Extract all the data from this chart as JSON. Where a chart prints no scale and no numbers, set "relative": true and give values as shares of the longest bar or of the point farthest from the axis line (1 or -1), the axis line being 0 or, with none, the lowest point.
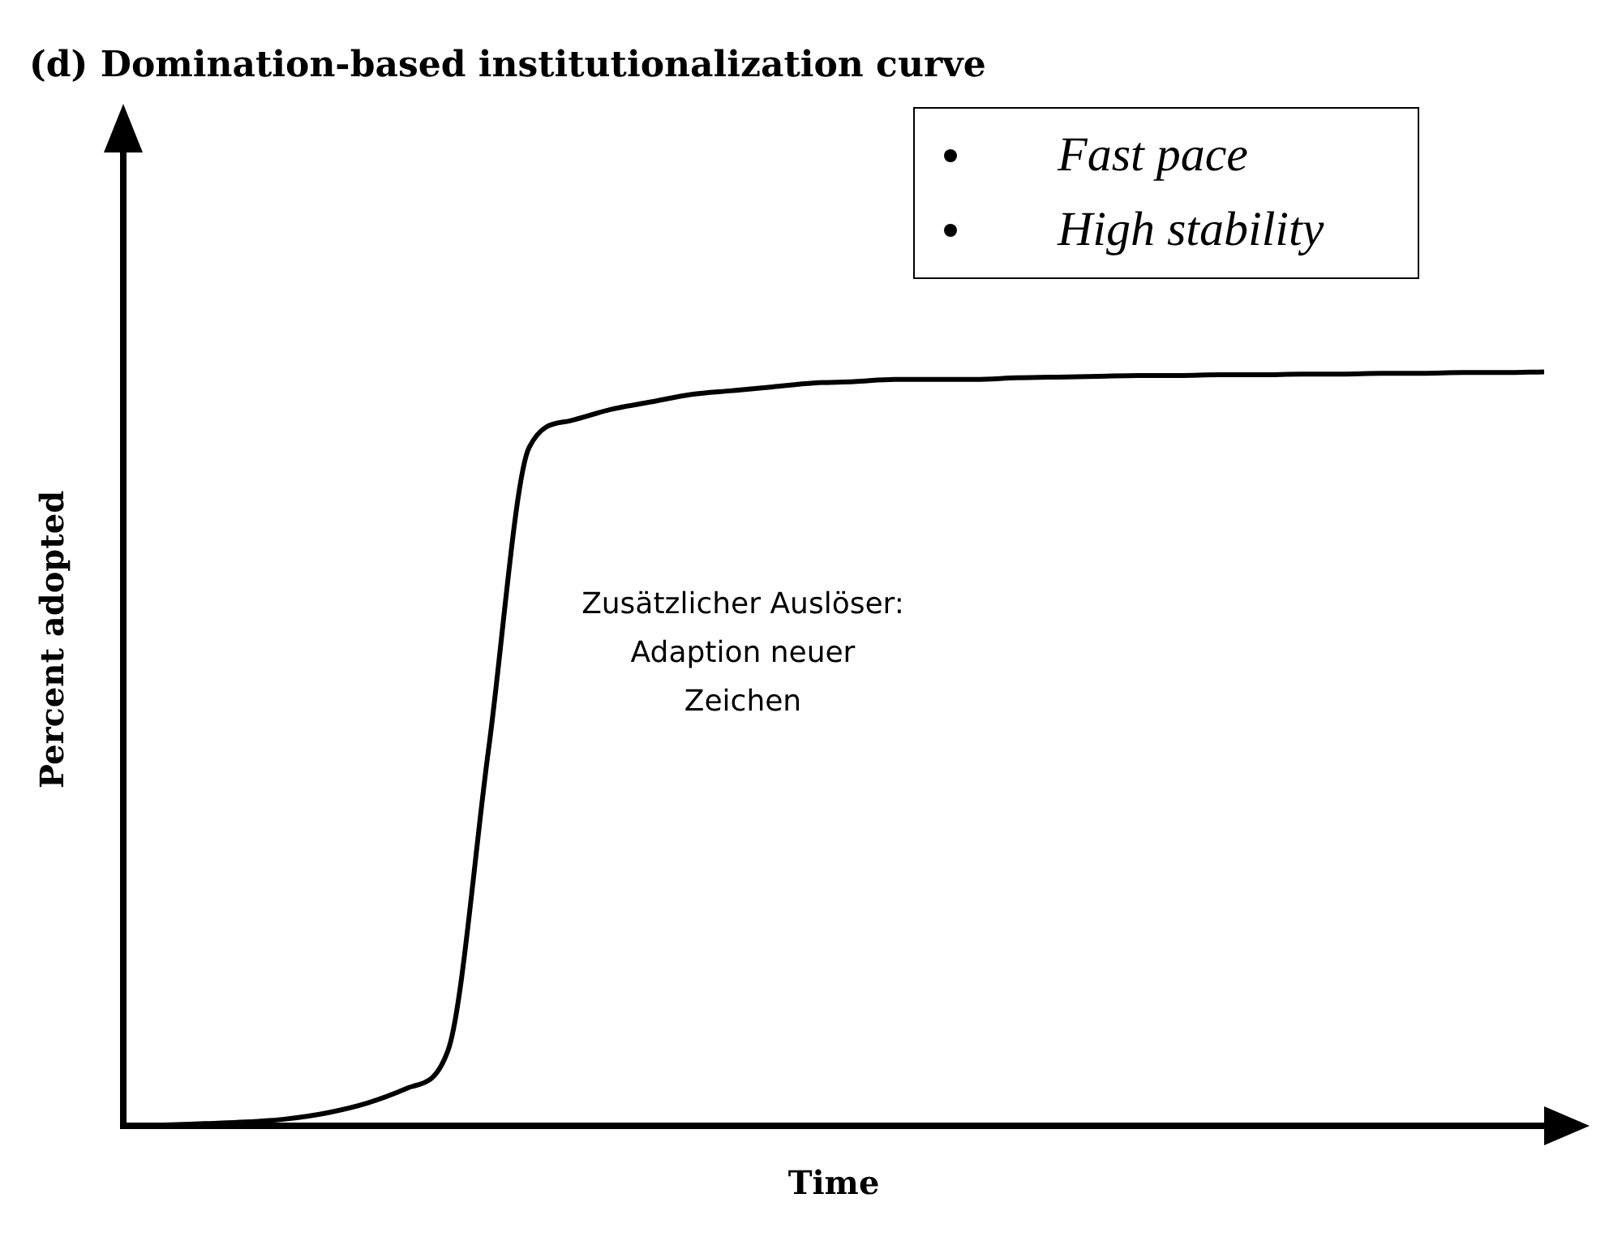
{
  "chart_data": {
    "type": "line",
    "title": "(d) Domination-based institutionalization curve",
    "xlabel": "Time",
    "ylabel": "Percent adopted",
    "relative": true,
    "marker": "none",
    "legend": false,
    "grid": false,
    "categories": [
      null,
      null,
      null,
      null,
      null,
      null,
      null,
      null,
      null,
      null,
      null,
      null,
      null,
      null,
      null,
      null,
      null,
      null,
      null,
      null,
      null,
      null,
      null,
      null,
      null,
      null,
      null,
      null,
      null,
      null,
      null,
      null,
      null,
      null,
      null,
      null
    ],
    "series": [
      {
        "color": "#000000",
        "values": [
          0,
          0.001,
          0.003,
          0.005,
          0.009,
          0.017,
          0.03,
          0.05,
          0.1,
          0.5,
          0.9,
          0.935,
          0.95,
          0.96,
          0.97,
          0.975,
          0.98,
          0.985,
          0.987,
          0.99,
          0.99,
          0.99,
          0.992,
          0.993,
          0.994,
          0.995,
          0.995,
          0.996,
          0.996,
          0.997,
          0.997,
          0.998,
          0.998,
          0.999,
          0.999,
          1
        ]
      }
    ],
    "annotations": [
      "Fast pace",
      "High stability",
      "Zusätzlicher Auslöser: Adaption neuer Zeichen"
    ]
  }
}
